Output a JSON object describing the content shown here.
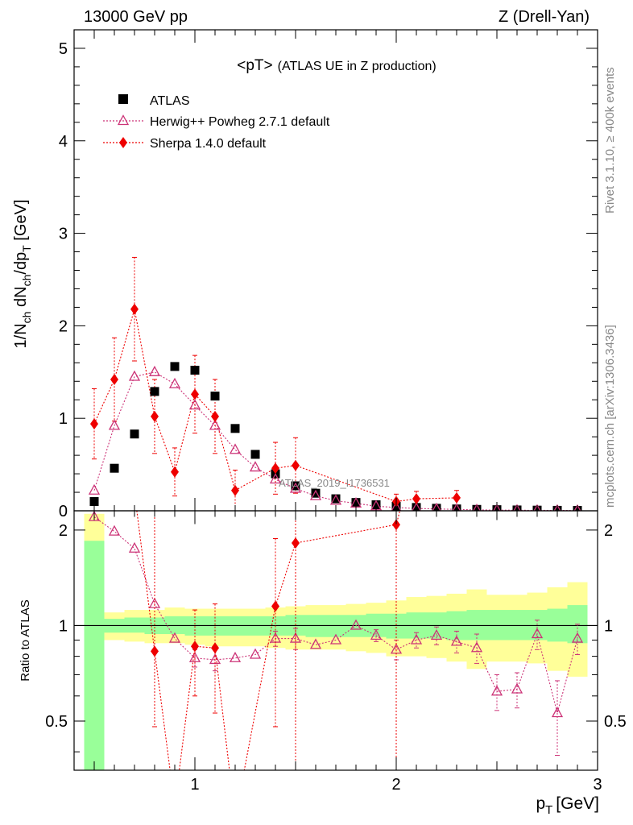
{
  "header": {
    "left": "13000 GeV pp",
    "right": "Z (Drell-Yan)"
  },
  "side_text": {
    "rivet": "Rivet 3.1.10, ≥ 400k events",
    "mcplots": "mcplots.cern.ch [arXiv:1306.3436]"
  },
  "watermark": "ATLAS_2019_I1736531",
  "chart_data": {
    "type": "scatter",
    "title": "<pT> (ATLAS UE in Z production)",
    "title_main": "<pT>",
    "title_sub": "(ATLAS UE in Z production)",
    "xlabel": "p_T [GeV]",
    "xlabel_main": "p",
    "xlabel_sub": "T",
    "xlabel_unit": "[GeV]",
    "ylabel": "1/N_ch dN_ch/dp_T [GeV]",
    "ylabel_parts": [
      "1/N",
      "ch",
      " dN",
      "ch",
      "/dp",
      "T",
      " [GeV]"
    ],
    "xlim": [
      0.4,
      3.0
    ],
    "upper": {
      "ylim": [
        0,
        5.2
      ],
      "yticks": [
        0,
        1,
        2,
        3,
        4,
        5
      ],
      "ytick_labels": [
        "0",
        "1",
        "2",
        "3",
        "4",
        "5"
      ]
    },
    "ratio": {
      "ylabel": "Ratio to ATLAS",
      "ylim": [
        0.35,
        2.3
      ],
      "yticks": [
        0.5,
        1,
        2
      ],
      "ytick_labels": [
        "0.5",
        "1",
        "2"
      ],
      "band_edges": [
        0.45,
        0.55,
        0.65,
        0.75,
        0.85,
        0.95,
        1.05,
        1.15,
        1.25,
        1.35,
        1.45,
        1.55,
        1.65,
        1.75,
        1.85,
        1.95,
        2.05,
        2.15,
        2.25,
        2.35,
        2.45,
        2.55,
        2.65,
        2.75,
        2.85,
        2.95
      ],
      "green_band": [
        [
          0.3,
          1.85
        ],
        [
          0.95,
          1.05
        ],
        [
          0.95,
          1.06
        ],
        [
          0.94,
          1.06
        ],
        [
          0.94,
          1.07
        ],
        [
          0.93,
          1.07
        ],
        [
          0.93,
          1.07
        ],
        [
          0.93,
          1.07
        ],
        [
          0.93,
          1.07
        ],
        [
          0.93,
          1.07
        ],
        [
          0.93,
          1.08
        ],
        [
          0.92,
          1.08
        ],
        [
          0.92,
          1.08
        ],
        [
          0.92,
          1.08
        ],
        [
          0.92,
          1.09
        ],
        [
          0.91,
          1.09
        ],
        [
          0.91,
          1.1
        ],
        [
          0.91,
          1.1
        ],
        [
          0.9,
          1.11
        ],
        [
          0.9,
          1.12
        ],
        [
          0.9,
          1.12
        ],
        [
          0.9,
          1.12
        ],
        [
          0.9,
          1.12
        ],
        [
          0.89,
          1.13
        ],
        [
          0.88,
          1.16
        ]
      ],
      "yellow_band": [
        [
          0.3,
          2.25
        ],
        [
          0.9,
          1.1
        ],
        [
          0.89,
          1.12
        ],
        [
          0.88,
          1.12
        ],
        [
          0.88,
          1.14
        ],
        [
          0.87,
          1.13
        ],
        [
          0.86,
          1.13
        ],
        [
          0.86,
          1.13
        ],
        [
          0.86,
          1.13
        ],
        [
          0.85,
          1.14
        ],
        [
          0.84,
          1.15
        ],
        [
          0.84,
          1.16
        ],
        [
          0.84,
          1.16
        ],
        [
          0.83,
          1.17
        ],
        [
          0.82,
          1.18
        ],
        [
          0.8,
          1.2
        ],
        [
          0.8,
          1.23
        ],
        [
          0.79,
          1.24
        ],
        [
          0.77,
          1.26
        ],
        [
          0.73,
          1.3
        ],
        [
          0.77,
          1.25
        ],
        [
          0.77,
          1.25
        ],
        [
          0.76,
          1.27
        ],
        [
          0.72,
          1.32
        ],
        [
          0.69,
          1.37
        ]
      ]
    },
    "xticks": [
      1,
      2,
      3
    ],
    "xtick_labels": [
      "1",
      "2",
      "3"
    ],
    "legend_position": "top-left",
    "series": [
      {
        "name": "ATLAS",
        "marker": "square",
        "color": "#000000",
        "x": [
          0.5,
          0.6,
          0.7,
          0.8,
          0.9,
          1.0,
          1.1,
          1.2,
          1.3,
          1.4,
          1.5,
          1.6,
          1.7,
          1.8,
          1.9,
          2.0,
          2.1,
          2.2,
          2.3,
          2.4,
          2.5,
          2.6,
          2.7,
          2.8,
          2.9
        ],
        "y": [
          0.1,
          0.46,
          0.83,
          1.29,
          1.56,
          1.52,
          1.24,
          0.89,
          0.61,
          0.4,
          0.27,
          0.19,
          0.13,
          0.09,
          0.065,
          0.048,
          0.036,
          0.027,
          0.02,
          0.015,
          0.012,
          0.009,
          0.007,
          0.005,
          0.004
        ]
      },
      {
        "name": "Herwig++ Powheg 2.7.1 default",
        "marker": "triangle-open",
        "color": "#cc3377",
        "x": [
          0.5,
          0.6,
          0.7,
          0.8,
          0.9,
          1.0,
          1.1,
          1.2,
          1.3,
          1.4,
          1.5,
          1.6,
          1.7,
          1.8,
          1.9,
          2.0,
          2.1,
          2.2,
          2.3,
          2.4,
          2.5,
          2.6,
          2.7,
          2.8,
          2.9
        ],
        "y": [
          0.22,
          0.92,
          1.45,
          1.5,
          1.37,
          1.14,
          0.92,
          0.66,
          0.47,
          0.34,
          0.24,
          0.16,
          0.11,
          0.08,
          0.05,
          0.035,
          0.025,
          0.02,
          0.015,
          0.01,
          0.008,
          0.006,
          0.005,
          0.004,
          0.003
        ],
        "ratio": [
          2.2,
          1.98,
          1.75,
          1.17,
          0.91,
          0.79,
          0.78,
          0.79,
          0.81,
          0.91,
          0.91,
          0.87,
          0.9,
          1.0,
          0.93,
          0.84,
          0.9,
          0.93,
          0.89,
          0.85,
          0.62,
          0.63,
          0.94,
          0.53,
          0.91
        ],
        "ratio_err": [
          0,
          0,
          0,
          0,
          0,
          0.05,
          0.06,
          0,
          0,
          0.05,
          0.07,
          0,
          0,
          0,
          0.04,
          0.06,
          0.05,
          0.06,
          0.07,
          0.09,
          0.08,
          0.08,
          0.1,
          0.14,
          0.1
        ]
      },
      {
        "name": "Sherpa 1.4.0 default",
        "marker": "diamond",
        "color": "#ee0000",
        "x": [
          0.5,
          0.6,
          0.7,
          0.8,
          0.9,
          1.0,
          1.1,
          1.2,
          1.4,
          1.5,
          2.0,
          2.1,
          2.3
        ],
        "y": [
          0.94,
          1.42,
          2.18,
          1.02,
          0.42,
          1.26,
          1.02,
          0.22,
          0.46,
          0.49,
          0.1,
          0.13,
          0.14
        ],
        "y_err": [
          0.38,
          0.45,
          0.56,
          0.4,
          0.26,
          0.42,
          0.4,
          0.22,
          0.28,
          0.3,
          0.08,
          0.08,
          0.08
        ],
        "ratio": [
          null,
          null,
          null,
          0.83,
          null,
          0.86,
          0.85,
          null,
          1.15,
          1.82,
          2.08,
          null,
          null
        ],
        "ratio_lo": [
          null,
          null,
          null,
          0.48,
          null,
          0.6,
          0.53,
          null,
          0.48,
          0.35,
          0.35,
          null,
          null
        ],
        "ratio_hi": [
          null,
          null,
          null,
          2.3,
          null,
          1.12,
          1.17,
          null,
          1.88,
          2.3,
          2.3,
          null,
          null
        ]
      }
    ]
  }
}
